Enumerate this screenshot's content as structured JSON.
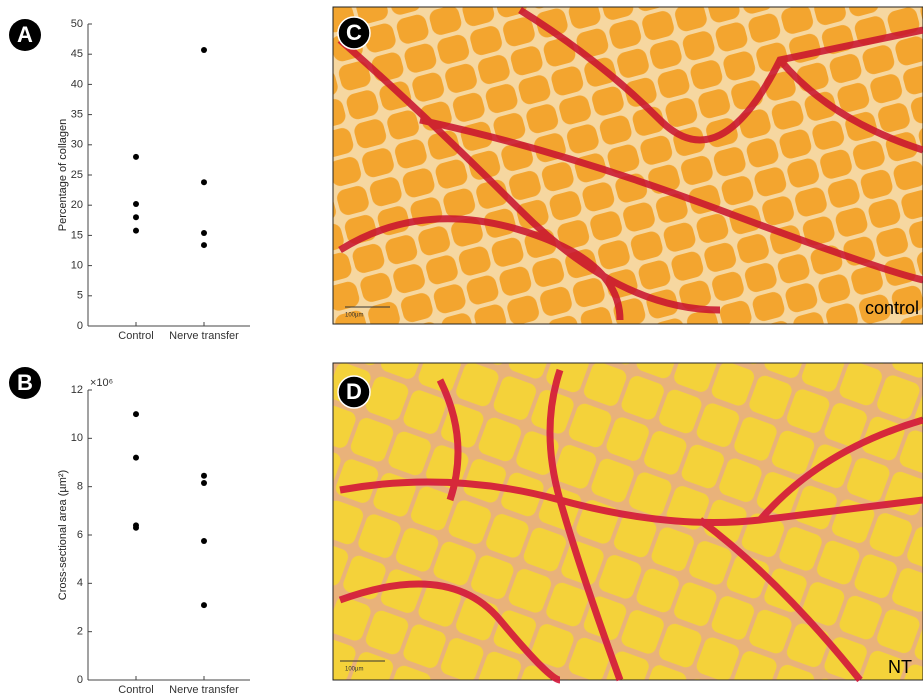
{
  "panel_labels": [
    "A",
    "B",
    "C",
    "D"
  ],
  "chart_data": [
    {
      "type": "scatter",
      "ylabel": "Percentage of collagen",
      "categories": [
        "Control",
        "Nerve transfer"
      ],
      "values": [
        [
          28,
          20.2,
          18,
          15.8
        ],
        [
          45.7,
          23.8,
          15.4,
          13.4
        ]
      ],
      "color": "#000000",
      "ylim": [
        0,
        50
      ],
      "yticks": [
        0,
        5,
        10,
        15,
        20,
        25,
        30,
        35,
        40,
        45,
        50
      ]
    },
    {
      "type": "scatter",
      "ylabel": "Cross-sectional area (µm²)",
      "axis_multiplier": "×10⁶",
      "categories": [
        "Control",
        "Nerve transfer"
      ],
      "values": [
        [
          11.0,
          9.2,
          6.4,
          6.3
        ],
        [
          8.45,
          8.15,
          5.75,
          3.1
        ]
      ],
      "color": "#000000",
      "ylim": [
        0,
        12
      ],
      "yticks": [
        0,
        2,
        4,
        6,
        8,
        10,
        12
      ]
    }
  ],
  "images": [
    {
      "caption": "control",
      "scale_bar": "100µm"
    },
    {
      "caption": "NT",
      "scale_bar": "100µm"
    }
  ]
}
